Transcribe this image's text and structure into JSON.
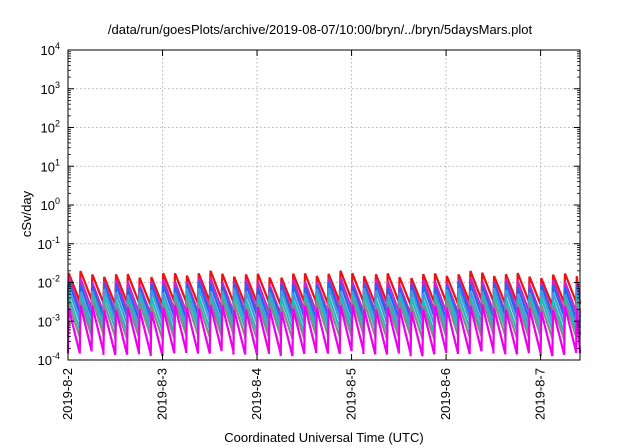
{
  "chart_data": {
    "type": "line",
    "title": "/data/run/goesPlots/archive/2019-08-07/10:00/bryn/../bryn/5daysMars.plot",
    "xlabel": "Coordinated Universal Time (UTC)",
    "ylabel": "cSv/day",
    "x_scale": "time",
    "y_scale": "log",
    "xlim": [
      "2019-08-02",
      "2019-08-07 10:00"
    ],
    "ylim": [
      0.0001,
      10000
    ],
    "grid": true,
    "x_ticks": [
      "2019-8-2",
      "2019-8-3",
      "2019-8-4",
      "2019-8-5",
      "2019-8-6",
      "2019-8-7"
    ],
    "y_ticks": [
      {
        "value": 0.0001,
        "base": "10",
        "exp": "-4"
      },
      {
        "value": 0.001,
        "base": "10",
        "exp": "-3"
      },
      {
        "value": 0.01,
        "base": "10",
        "exp": "-2"
      },
      {
        "value": 0.1,
        "base": "10",
        "exp": "-1"
      },
      {
        "value": 1,
        "base": "10",
        "exp": "0"
      },
      {
        "value": 10,
        "base": "10",
        "exp": "1"
      },
      {
        "value": 100,
        "base": "10",
        "exp": "2"
      },
      {
        "value": 1000,
        "base": "10",
        "exp": "3"
      },
      {
        "value": 10000,
        "base": "10",
        "exp": "4"
      }
    ],
    "sawtooth_period_days": 0.125,
    "series": [
      {
        "color": "#ee1111",
        "peak": 0.016,
        "trough": 0.003
      },
      {
        "color": "#cc22cc",
        "peak": 0.011,
        "trough": 0.0018
      },
      {
        "color": "#2266ee",
        "peak": 0.0085,
        "trough": 0.0013
      },
      {
        "color": "#4499dd",
        "peak": 0.006,
        "trough": 0.0009
      },
      {
        "color": "#22bbbb",
        "peak": 0.0042,
        "trough": 0.0006
      },
      {
        "color": "#888888",
        "peak": 0.003,
        "trough": 0.0004
      },
      {
        "color": "#ee00ee",
        "peak": 0.0022,
        "trough": 0.00015
      }
    ]
  }
}
